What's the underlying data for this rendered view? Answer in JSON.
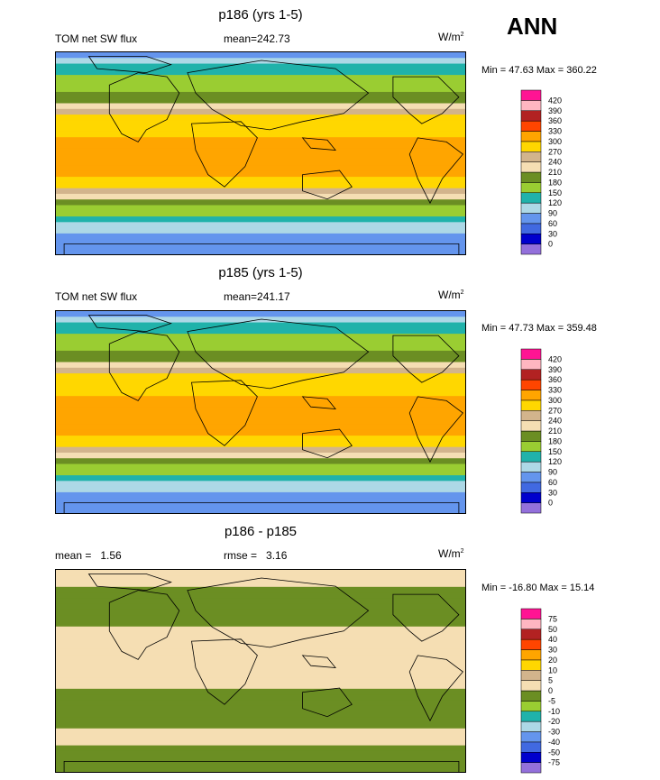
{
  "season": "ANN",
  "colors": {
    "abs_scale": [
      "#9370db",
      "#0000cd",
      "#4169e1",
      "#6495ed",
      "#add8e6",
      "#20b2aa",
      "#9acd32",
      "#6b8e23",
      "#f5deb3",
      "#d2b48c",
      "#ffd700",
      "#ffa500",
      "#ff4500",
      "#b22222",
      "#ffb6c1",
      "#ff1493"
    ],
    "diff_scale": [
      "#9370db",
      "#0000cd",
      "#4169e1",
      "#6495ed",
      "#add8e6",
      "#20b2aa",
      "#9acd32",
      "#6b8e23",
      "#f5deb3",
      "#d2b48c",
      "#ffd700",
      "#ffa500",
      "#ff4500",
      "#b22222",
      "#ffb6c1",
      "#ff1493"
    ]
  },
  "chart_data": [
    {
      "type": "heatmap",
      "title": "p186 (yrs 1-5)",
      "variable": "TOM net SW flux",
      "mean_label": "mean=",
      "mean": "242.73",
      "units": "W/m",
      "units_exp": "2",
      "min_label": "Min =",
      "min": "47.63",
      "max_label": "Max =",
      "max": "360.22",
      "levels": [
        "0",
        "30",
        "60",
        "90",
        "120",
        "150",
        "180",
        "210",
        "240",
        "270",
        "300",
        "330",
        "360",
        "390",
        "420"
      ],
      "zonal_profile": [
        {
          "lat": 90,
          "value": 75
        },
        {
          "lat": 75,
          "value": 140
        },
        {
          "lat": 60,
          "value": 160
        },
        {
          "lat": 45,
          "value": 215
        },
        {
          "lat": 30,
          "value": 285
        },
        {
          "lat": 15,
          "value": 300
        },
        {
          "lat": 0,
          "value": 315
        },
        {
          "lat": -15,
          "value": 305
        },
        {
          "lat": -30,
          "value": 275
        },
        {
          "lat": -45,
          "value": 185
        },
        {
          "lat": -60,
          "value": 125
        },
        {
          "lat": -75,
          "value": 70
        },
        {
          "lat": -90,
          "value": 60
        }
      ]
    },
    {
      "type": "heatmap",
      "title": "p185 (yrs 1-5)",
      "variable": "TOM net SW flux",
      "mean_label": "mean=",
      "mean": "241.17",
      "units": "W/m",
      "units_exp": "2",
      "min_label": "Min =",
      "min": "47.73",
      "max_label": "Max =",
      "max": "359.48",
      "levels": [
        "0",
        "30",
        "60",
        "90",
        "120",
        "150",
        "180",
        "210",
        "240",
        "270",
        "300",
        "330",
        "360",
        "390",
        "420"
      ],
      "zonal_profile": [
        {
          "lat": 90,
          "value": 75
        },
        {
          "lat": 75,
          "value": 140
        },
        {
          "lat": 60,
          "value": 160
        },
        {
          "lat": 45,
          "value": 215
        },
        {
          "lat": 30,
          "value": 285
        },
        {
          "lat": 15,
          "value": 300
        },
        {
          "lat": 0,
          "value": 315
        },
        {
          "lat": -15,
          "value": 305
        },
        {
          "lat": -30,
          "value": 275
        },
        {
          "lat": -45,
          "value": 185
        },
        {
          "lat": -60,
          "value": 125
        },
        {
          "lat": -75,
          "value": 70
        },
        {
          "lat": -90,
          "value": 60
        }
      ]
    },
    {
      "type": "heatmap",
      "title": "p186 - p185",
      "mean_label": "mean =",
      "mean": "1.56",
      "rmse_label": "rmse =",
      "rmse": "3.16",
      "units": "W/m",
      "units_exp": "2",
      "min_label": "Min =",
      "min": "-16.80",
      "max_label": "Max =",
      "max": "15.14",
      "levels": [
        "-75",
        "-50",
        "-40",
        "-30",
        "-20",
        "-10",
        "-5",
        "0",
        "5",
        "10",
        "20",
        "30",
        "40",
        "50",
        "75"
      ],
      "zonal_profile": [
        {
          "lat": 90,
          "value": 2
        },
        {
          "lat": 60,
          "value": -2
        },
        {
          "lat": 30,
          "value": 1
        },
        {
          "lat": 0,
          "value": 3
        },
        {
          "lat": -30,
          "value": -3
        },
        {
          "lat": -60,
          "value": 1
        },
        {
          "lat": -90,
          "value": -4
        }
      ]
    }
  ]
}
